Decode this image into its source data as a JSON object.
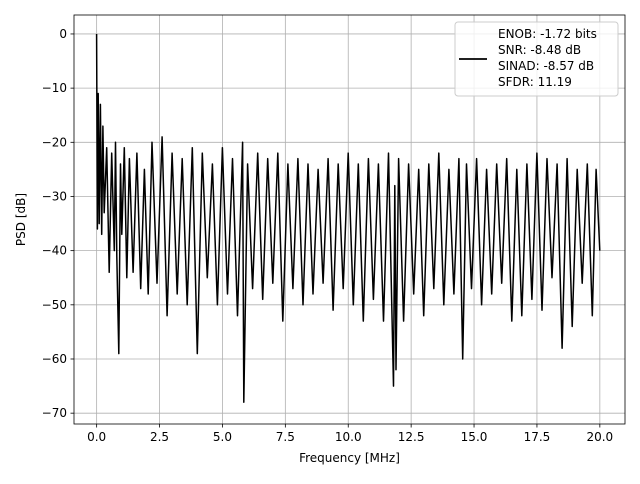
{
  "chart_data": {
    "type": "line",
    "title": "",
    "xlabel": "Frequency [MHz]",
    "ylabel": "PSD [dB]",
    "xlim": [
      -0.9,
      21.0
    ],
    "ylim": [
      -72,
      3.5
    ],
    "grid": true,
    "legend_position": "top-right",
    "x_ticks": [
      0,
      2.5,
      5,
      7.5,
      10,
      12.5,
      15,
      17.5,
      20
    ],
    "x_tick_labels": [
      "0.0",
      "2.5",
      "5.0",
      "7.5",
      "10.0",
      "12.5",
      "15.0",
      "17.5",
      "20.0"
    ],
    "y_ticks": [
      0,
      -10,
      -20,
      -30,
      -40,
      -50,
      -60,
      -70
    ],
    "y_tick_labels": [
      "0",
      "−10",
      "−20",
      "−30",
      "−40",
      "−50",
      "−60",
      "−70"
    ],
    "legend_lines": [
      "ENOB: -1.72 bits",
      "SNR: -8.48 dB",
      "SINAD: -8.57 dB",
      "SFDR: 11.19"
    ],
    "line_color": "#000000",
    "grid_color": "#b0b0b0",
    "series": [
      {
        "x": [
          0.0,
          0.03,
          0.06,
          0.1,
          0.15,
          0.2,
          0.25,
          0.3,
          0.4,
          0.5,
          0.6,
          0.7,
          0.75,
          0.8,
          0.88,
          0.95,
          1.0,
          1.1,
          1.2,
          1.3,
          1.45,
          1.6,
          1.75,
          1.9,
          2.05,
          2.2,
          2.4,
          2.6,
          2.8,
          3.0,
          3.2,
          3.4,
          3.6,
          3.8,
          4.0,
          4.2,
          4.4,
          4.6,
          4.8,
          5.0,
          5.2,
          5.4,
          5.6,
          5.8,
          5.85,
          6.0,
          6.2,
          6.4,
          6.6,
          6.8,
          7.0,
          7.2,
          7.4,
          7.6,
          7.8,
          8.0,
          8.2,
          8.4,
          8.6,
          8.8,
          9.0,
          9.2,
          9.4,
          9.6,
          9.8,
          10.0,
          10.2,
          10.4,
          10.6,
          10.8,
          11.0,
          11.2,
          11.4,
          11.6,
          11.8,
          11.85,
          11.9,
          12.0,
          12.2,
          12.4,
          12.6,
          12.8,
          13.0,
          13.2,
          13.4,
          13.6,
          13.8,
          14.0,
          14.2,
          14.4,
          14.55,
          14.7,
          14.9,
          15.1,
          15.3,
          15.5,
          15.7,
          15.9,
          16.1,
          16.3,
          16.5,
          16.7,
          16.9,
          17.1,
          17.3,
          17.5,
          17.7,
          17.9,
          18.1,
          18.3,
          18.5,
          18.7,
          18.9,
          19.1,
          19.3,
          19.5,
          19.7,
          19.85,
          20.0
        ],
        "values": [
          0.0,
          -36.0,
          -11.0,
          -35.0,
          -13.0,
          -37.0,
          -17.0,
          -33.0,
          -21.0,
          -44.0,
          -22.0,
          -40.0,
          -20.0,
          -41.0,
          -59.0,
          -24.0,
          -37.0,
          -21.0,
          -45.0,
          -23.0,
          -44.0,
          -22.0,
          -47.0,
          -25.0,
          -48.0,
          -20.0,
          -46.0,
          -19.0,
          -52.0,
          -22.0,
          -48.0,
          -23.0,
          -50.0,
          -21.0,
          -59.0,
          -22.0,
          -45.0,
          -24.0,
          -50.0,
          -21.0,
          -48.0,
          -23.0,
          -52.0,
          -20.0,
          -68.0,
          -24.0,
          -47.0,
          -22.0,
          -49.0,
          -23.0,
          -46.0,
          -22.0,
          -53.0,
          -24.0,
          -47.0,
          -23.0,
          -50.0,
          -24.0,
          -48.0,
          -25.0,
          -46.0,
          -23.0,
          -51.0,
          -24.0,
          -47.0,
          -22.0,
          -50.0,
          -24.0,
          -53.0,
          -23.0,
          -49.0,
          -24.0,
          -53.0,
          -22.0,
          -65.0,
          -28.0,
          -62.0,
          -23.0,
          -53.0,
          -24.0,
          -48.0,
          -25.0,
          -52.0,
          -24.0,
          -47.0,
          -22.0,
          -50.0,
          -25.0,
          -48.0,
          -23.0,
          -60.0,
          -24.0,
          -47.0,
          -23.0,
          -50.0,
          -25.0,
          -48.0,
          -24.0,
          -46.0,
          -23.0,
          -53.0,
          -25.0,
          -52.0,
          -24.0,
          -49.0,
          -22.0,
          -51.0,
          -23.0,
          -45.0,
          -24.0,
          -58.0,
          -23.0,
          -54.0,
          -25.0,
          -46.0,
          -24.0,
          -52.0,
          -25.0,
          -40.0
        ]
      }
    ]
  }
}
